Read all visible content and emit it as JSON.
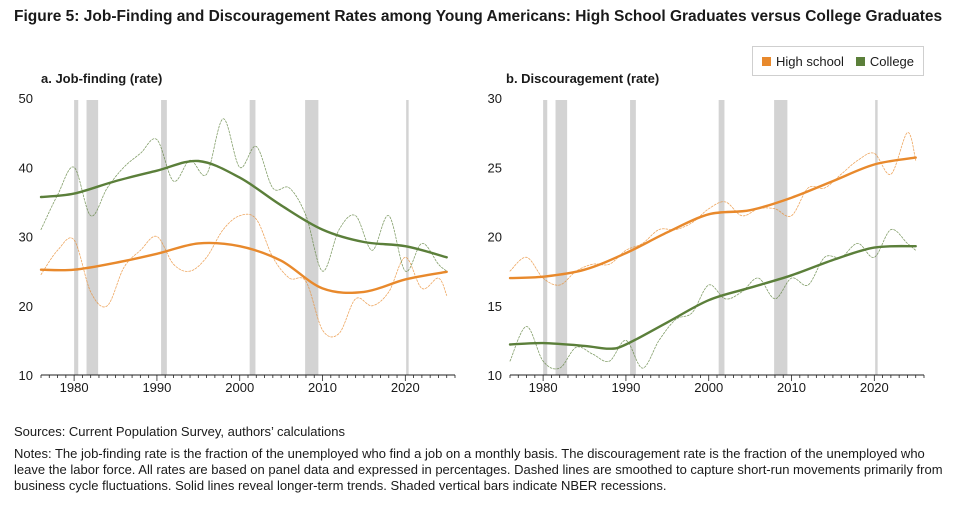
{
  "figure": {
    "title": "Figure 5: Job-Finding and Discouragement Rates among Young Americans: High School Graduates versus College Graduates",
    "sources": "Sources: Current Population Survey, authors’ calculations",
    "notes": "Notes: The job-finding rate is the fraction of the unemployed who find a job on a monthly basis. The discouragement rate is the fraction of the unemployed who leave the labor force. All rates are based on panel data and expressed in percentages. Dashed lines are smoothed to capture short-run movements primarily from business cycle fluctuations. Solid lines reveal longer-term trends. Shaded vertical bars indicate NBER recessions."
  },
  "legend": {
    "items": [
      {
        "label": "High school",
        "color": "#e8892c"
      },
      {
        "label": "College",
        "color": "#5b7f3a"
      }
    ],
    "placement": "top-right"
  },
  "recessions": [
    [
      1980.0,
      1980.5
    ],
    [
      1981.5,
      1982.9
    ],
    [
      1990.5,
      1991.2
    ],
    [
      2001.2,
      2001.9
    ],
    [
      2007.9,
      2009.5
    ],
    [
      2020.1,
      2020.4
    ]
  ],
  "chart_data": [
    {
      "type": "line",
      "title": "a. Job-finding (rate)",
      "xlim": [
        1976,
        2026
      ],
      "ylim": [
        10,
        50
      ],
      "xticks": [
        1980,
        1990,
        2000,
        2010,
        2020
      ],
      "yticks": [
        10,
        20,
        30,
        40,
        50
      ],
      "series": [
        {
          "name": "High school",
          "kind": "trend",
          "color": "#e8892c",
          "x": [
            1976,
            1980,
            1985,
            1990,
            1995,
            2000,
            2005,
            2010,
            2015,
            2020,
            2025
          ],
          "values": [
            25.2,
            25.2,
            26.2,
            27.5,
            29.0,
            28.6,
            26.5,
            22.5,
            22.0,
            23.8,
            24.9
          ]
        },
        {
          "name": "College",
          "kind": "trend",
          "color": "#5b7f3a",
          "x": [
            1976,
            1980,
            1985,
            1990,
            1995,
            2000,
            2005,
            2010,
            2015,
            2020,
            2025
          ],
          "values": [
            35.7,
            36.2,
            38.0,
            39.5,
            40.9,
            38.5,
            34.5,
            31.0,
            29.2,
            28.6,
            27.0
          ]
        },
        {
          "name": "High school",
          "kind": "smoothed",
          "color": "#e8892c",
          "x": [
            1976,
            1978,
            1980,
            1982,
            1984,
            1986,
            1988,
            1990,
            1992,
            1994,
            1996,
            1998,
            2000,
            2002,
            2004,
            2006,
            2008,
            2010,
            2012,
            2014,
            2016,
            2018,
            2020,
            2022,
            2024,
            2025
          ],
          "values": [
            24.5,
            28,
            29.5,
            22,
            20,
            25.5,
            28,
            30,
            26,
            25,
            27,
            31,
            33,
            32.5,
            27,
            24,
            23.5,
            16.5,
            16,
            21,
            20,
            22,
            27,
            22.5,
            24,
            21.5
          ]
        },
        {
          "name": "College",
          "kind": "smoothed",
          "color": "#5b7f3a",
          "x": [
            1976,
            1978,
            1980,
            1982,
            1984,
            1986,
            1988,
            1990,
            1992,
            1994,
            1996,
            1998,
            2000,
            2002,
            2004,
            2006,
            2008,
            2010,
            2012,
            2014,
            2016,
            2018,
            2020,
            2022,
            2024,
            2025
          ],
          "values": [
            31,
            36,
            40,
            33,
            37,
            40,
            42,
            44,
            38,
            41,
            39,
            47,
            40,
            43,
            37,
            37,
            33,
            25,
            31,
            33,
            28,
            33,
            25,
            29,
            26,
            25
          ]
        }
      ]
    },
    {
      "type": "line",
      "title": "b. Discouragement (rate)",
      "xlim": [
        1976,
        2026
      ],
      "ylim": [
        10,
        30
      ],
      "xticks": [
        1980,
        1990,
        2000,
        2010,
        2020
      ],
      "yticks": [
        10,
        15,
        20,
        25,
        30
      ],
      "series": [
        {
          "name": "High school",
          "kind": "trend",
          "color": "#e8892c",
          "x": [
            1976,
            1980,
            1985,
            1990,
            1995,
            2000,
            2005,
            2010,
            2015,
            2020,
            2025
          ],
          "values": [
            17.0,
            17.1,
            17.6,
            18.8,
            20.3,
            21.6,
            21.9,
            22.8,
            24.0,
            25.2,
            25.7
          ]
        },
        {
          "name": "College",
          "kind": "trend",
          "color": "#5b7f3a",
          "x": [
            1976,
            1980,
            1985,
            1988,
            1990,
            1995,
            2000,
            2005,
            2010,
            2015,
            2020,
            2025
          ],
          "values": [
            12.2,
            12.3,
            12.1,
            11.9,
            12.2,
            13.8,
            15.4,
            16.3,
            17.2,
            18.3,
            19.2,
            19.3
          ]
        },
        {
          "name": "High school",
          "kind": "smoothed",
          "color": "#e8892c",
          "x": [
            1976,
            1978,
            1980,
            1982,
            1984,
            1986,
            1988,
            1990,
            1992,
            1994,
            1996,
            1998,
            2000,
            2002,
            2004,
            2006,
            2008,
            2010,
            2012,
            2014,
            2016,
            2018,
            2020,
            2022,
            2024,
            2025
          ],
          "values": [
            17.5,
            18.5,
            17,
            16.5,
            17.5,
            18,
            18,
            19,
            19.5,
            20.5,
            20.5,
            21,
            22,
            22.5,
            21.5,
            22,
            22,
            21.5,
            23.5,
            23.5,
            24.5,
            25.5,
            26,
            24.5,
            27.5,
            25.5
          ]
        },
        {
          "name": "College",
          "kind": "smoothed",
          "color": "#5b7f3a",
          "x": [
            1976,
            1978,
            1980,
            1982,
            1984,
            1986,
            1988,
            1990,
            1992,
            1994,
            1996,
            1998,
            2000,
            2002,
            2004,
            2006,
            2008,
            2010,
            2012,
            2014,
            2016,
            2018,
            2020,
            2022,
            2024,
            2025
          ],
          "values": [
            11,
            13.5,
            11,
            10.5,
            12,
            11.5,
            11,
            12.5,
            10.5,
            12.5,
            14,
            14.5,
            16.5,
            15.5,
            16,
            17,
            15.5,
            17,
            16.5,
            18.5,
            18.5,
            19.5,
            18.5,
            20.5,
            19.5,
            19
          ]
        }
      ]
    }
  ]
}
